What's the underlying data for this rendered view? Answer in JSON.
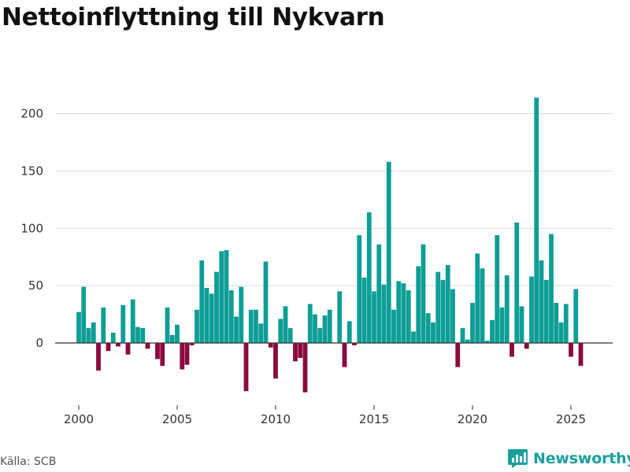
{
  "title": "Nettoinflyttning till Nykvarn",
  "source": "Källa: SCB",
  "brand": "Newsworthy",
  "brand_icon": "newsworthy-logo-icon",
  "colors": {
    "positive": "#0e9e96",
    "negative": "#8b0a3e",
    "brand": "#199f9e",
    "grid": "#d9d9d9",
    "zero": "#333333"
  },
  "chart_data": {
    "type": "bar",
    "title": "Nettoinflyttning till Nykvarn",
    "xlabel": "",
    "ylabel": "",
    "ylim": [
      -42,
      220
    ],
    "xlim": [
      1999.4,
      2026.3
    ],
    "yticks": [
      0,
      50,
      100,
      150,
      200
    ],
    "xticks": [
      2000,
      2005,
      2010,
      2015,
      2020,
      2025
    ],
    "grid": "horizontal",
    "x": [
      2000.0,
      2000.25,
      2000.5,
      2000.75,
      2001.0,
      2001.25,
      2001.5,
      2001.75,
      2002.0,
      2002.25,
      2002.5,
      2002.75,
      2003.0,
      2003.25,
      2003.5,
      2003.75,
      2004.0,
      2004.25,
      2004.5,
      2004.75,
      2005.0,
      2005.25,
      2005.5,
      2005.75,
      2006.0,
      2006.25,
      2006.5,
      2006.75,
      2007.0,
      2007.25,
      2007.5,
      2007.75,
      2008.0,
      2008.25,
      2008.5,
      2008.75,
      2009.0,
      2009.25,
      2009.5,
      2009.75,
      2010.0,
      2010.25,
      2010.5,
      2010.75,
      2011.0,
      2011.25,
      2011.5,
      2011.75,
      2012.0,
      2012.25,
      2012.5,
      2012.75,
      2013.0,
      2013.25,
      2013.5,
      2013.75,
      2014.0,
      2014.25,
      2014.5,
      2014.75,
      2015.0,
      2015.25,
      2015.5,
      2015.75,
      2016.0,
      2016.25,
      2016.5,
      2016.75,
      2017.0,
      2017.25,
      2017.5,
      2017.75,
      2018.0,
      2018.25,
      2018.5,
      2018.75,
      2019.0,
      2019.25,
      2019.5,
      2019.75,
      2020.0,
      2020.25,
      2020.5,
      2020.75,
      2021.0,
      2021.25,
      2021.5,
      2021.75,
      2022.0,
      2022.25,
      2022.5,
      2022.75,
      2023.0,
      2023.25,
      2023.5,
      2023.75,
      2024.0,
      2024.25,
      2024.5,
      2024.75,
      2025.0,
      2025.25,
      2025.5
    ],
    "values": [
      27,
      49,
      13,
      18,
      -24,
      31,
      -7,
      9,
      -3,
      33,
      -10,
      38,
      14,
      13,
      -5,
      0,
      -14,
      -20,
      31,
      7,
      16,
      -23,
      -19,
      -2,
      29,
      72,
      48,
      43,
      62,
      80,
      81,
      46,
      23,
      49,
      -42,
      29,
      29,
      17,
      71,
      -4,
      -31,
      21,
      32,
      13,
      -16,
      -13,
      -43,
      34,
      25,
      13,
      24,
      29,
      0,
      45,
      -21,
      19,
      -2,
      94,
      57,
      114,
      45,
      86,
      51,
      158,
      29,
      54,
      52,
      46,
      10,
      67,
      86,
      26,
      18,
      62,
      55,
      68,
      47,
      -21,
      13,
      3,
      35,
      78,
      65,
      2,
      20,
      94,
      31,
      59,
      -12,
      105,
      32,
      -5,
      58,
      214,
      72,
      55,
      95,
      35,
      18,
      34,
      -12,
      47,
      -20
    ]
  }
}
